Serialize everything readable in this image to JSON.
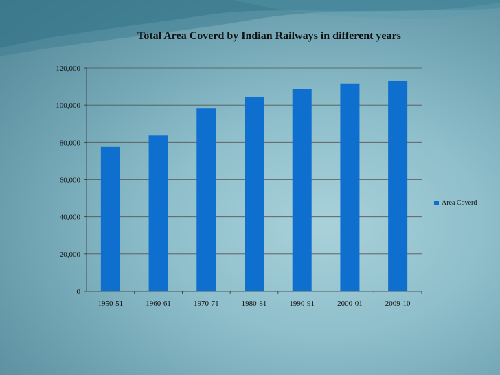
{
  "chart_data": {
    "type": "bar",
    "title": "Total Area Coverd by Indian Railways in different years",
    "xlabel": "",
    "ylabel": "",
    "categories": [
      "1950-51",
      "1960-61",
      "1970-71",
      "1980-81",
      "1990-91",
      "2000-01",
      "2009-10"
    ],
    "series": [
      {
        "name": "Area Coverd",
        "values": [
          77600,
          83700,
          98500,
          104500,
          108900,
          111600,
          113000
        ]
      }
    ],
    "ylim": [
      0,
      120000
    ],
    "yticks": [
      0,
      20000,
      40000,
      60000,
      80000,
      100000,
      120000
    ],
    "ytick_labels": [
      "0",
      "20,000",
      "40,000",
      "60,000",
      "80,000",
      "100,000",
      "120,000"
    ],
    "grid": true,
    "legend_position": "right",
    "colors": {
      "bar": "#0f6fcf",
      "grid": "#555555",
      "axis": "#333333"
    }
  }
}
